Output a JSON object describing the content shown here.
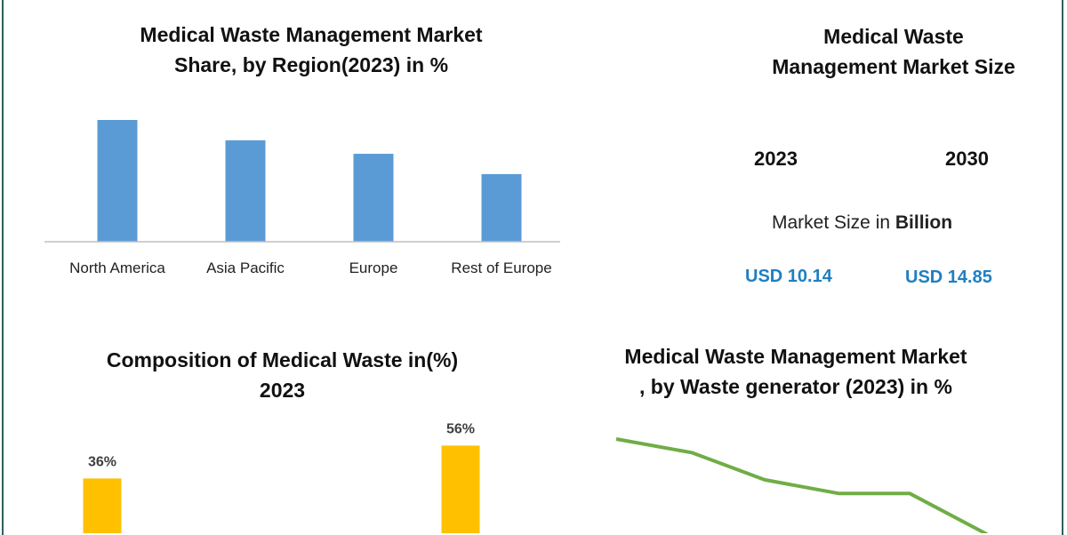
{
  "chart_data": [
    {
      "type": "bar",
      "title": "Medical Waste Management Market\nShare, by Region(2023) in %",
      "categories": [
        "North America",
        "Asia Pacific",
        "Europe",
        "Rest of Europe"
      ],
      "values": [
        36,
        30,
        26,
        20
      ],
      "ylim": [
        0,
        40
      ],
      "grid": false,
      "colors": {
        "bar": "#5b9bd5",
        "axis": "#bfbfbf"
      }
    },
    {
      "type": "bar",
      "title": "Composition of Medical Waste in(%)\n2023",
      "categories": [
        "",
        "",
        "",
        ""
      ],
      "values": [
        36,
        null,
        null,
        56
      ],
      "data_labels": [
        "36%",
        "",
        "",
        "56%"
      ],
      "ylim": [
        0,
        60
      ],
      "colors": {
        "bar": "#ffc000",
        "label": "#404040"
      }
    },
    {
      "type": "line",
      "title": "Medical Waste Management Market\n, by Waste generator (2023) in %",
      "x": [
        1,
        2,
        3,
        4,
        5,
        6
      ],
      "values": [
        36,
        33,
        27,
        24,
        24,
        15
      ],
      "ylim": [
        0,
        40
      ],
      "colors": {
        "line": "#70ad47"
      }
    }
  ],
  "market_size": {
    "title": "Medical Waste\nManagement Market Size",
    "year_a": "2023",
    "year_b": "2030",
    "label_prefix": "Market Size in ",
    "label_unit": "Billion",
    "value_a": "USD 10.14",
    "value_b": "USD 14.85"
  }
}
